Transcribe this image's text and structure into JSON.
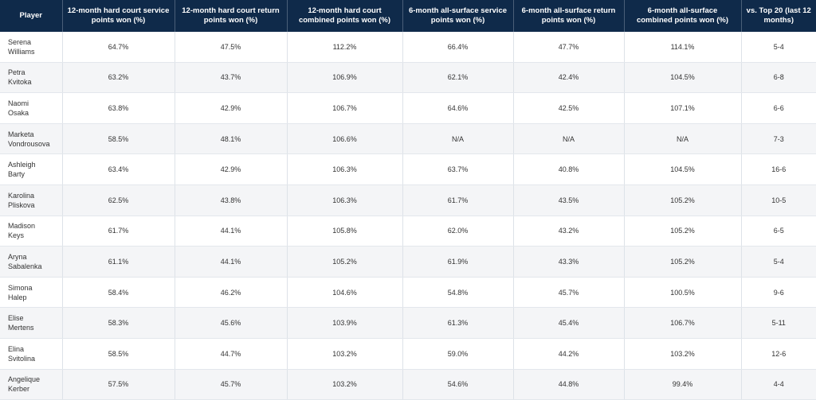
{
  "table": {
    "headers": [
      "Player",
      "12-month hard court service points won (%)",
      "12-month hard court return points won (%)",
      "12-month hard court combined points won (%)",
      "6-month all-surface service points won (%)",
      "6-month all-surface return points won (%)",
      "6-month all-surface combined points won (%)",
      "vs. Top 20 (last 12 months)"
    ],
    "rows": [
      [
        "Serena Williams",
        "64.7%",
        "47.5%",
        "112.2%",
        "66.4%",
        "47.7%",
        "114.1%",
        "5-4"
      ],
      [
        "Petra Kvitoka",
        "63.2%",
        "43.7%",
        "106.9%",
        "62.1%",
        "42.4%",
        "104.5%",
        "6-8"
      ],
      [
        "Naomi Osaka",
        "63.8%",
        "42.9%",
        "106.7%",
        "64.6%",
        "42.5%",
        "107.1%",
        "6-6"
      ],
      [
        "Marketa Vondrousova",
        "58.5%",
        "48.1%",
        "106.6%",
        "N/A",
        "N/A",
        "N/A",
        "7-3"
      ],
      [
        "Ashleigh Barty",
        "63.4%",
        "42.9%",
        "106.3%",
        "63.7%",
        "40.8%",
        "104.5%",
        "16-6"
      ],
      [
        "Karolina Pliskova",
        "62.5%",
        "43.8%",
        "106.3%",
        "61.7%",
        "43.5%",
        "105.2%",
        "10-5"
      ],
      [
        "Madison Keys",
        "61.7%",
        "44.1%",
        "105.8%",
        "62.0%",
        "43.2%",
        "105.2%",
        "6-5"
      ],
      [
        "Aryna Sabalenka",
        "61.1%",
        "44.1%",
        "105.2%",
        "61.9%",
        "43.3%",
        "105.2%",
        "5-4"
      ],
      [
        "Simona Halep",
        "58.4%",
        "46.2%",
        "104.6%",
        "54.8%",
        "45.7%",
        "100.5%",
        "9-6"
      ],
      [
        "Elise Mertens",
        "58.3%",
        "45.6%",
        "103.9%",
        "61.3%",
        "45.4%",
        "106.7%",
        "5-11"
      ],
      [
        "Elina Svitolina",
        "58.5%",
        "44.7%",
        "103.2%",
        "59.0%",
        "44.2%",
        "103.2%",
        "12-6"
      ],
      [
        "Angelique Kerber",
        "57.5%",
        "45.7%",
        "103.2%",
        "54.6%",
        "44.8%",
        "99.4%",
        "4-4"
      ]
    ]
  },
  "colors": {
    "header_background": "#0f2a4a",
    "header_text": "#ffffff",
    "stripe_background": "#f4f5f7"
  }
}
